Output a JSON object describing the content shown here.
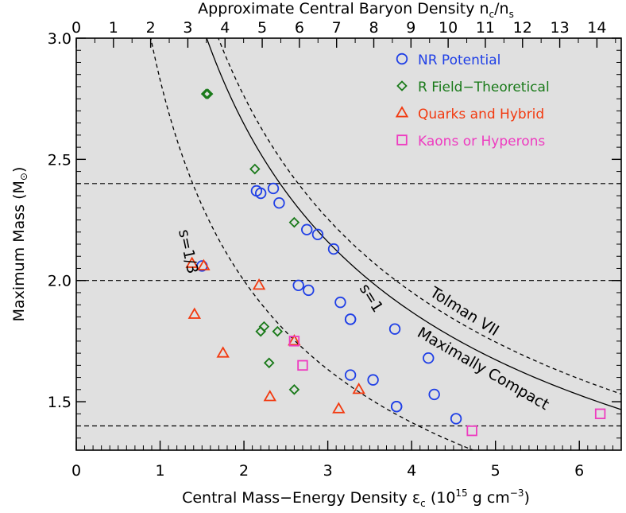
{
  "chart_data": {
    "type": "scatter",
    "xlabel": "Central Mass−Energy Density ε",
    "xlabel_sub": "c",
    "xlabel_units_pre": "(10",
    "xlabel_units_exp": "15",
    "xlabel_units_mid": "g cm",
    "xlabel_units_exp2": "−3",
    "xlabel_units_post": ")",
    "ylabel": "Maximum Mass (M",
    "ylabel_sub": "⊙",
    "ylabel_post": ")",
    "top_xlabel": "Approximate Central Baryon Density n",
    "top_xlabel_sub1": "c",
    "top_xlabel_mid": "/n",
    "top_xlabel_sub2": "s",
    "xlim": [
      0,
      6.5
    ],
    "ylim": [
      1.3,
      3.0
    ],
    "x_ticks": [
      "0",
      "1",
      "2",
      "3",
      "4",
      "5",
      "6"
    ],
    "y_ticks": [
      "1.5",
      "2.0",
      "2.5",
      "3.0"
    ],
    "top_ticks": [
      "0",
      "1",
      "2",
      "3",
      "4",
      "5",
      "6",
      "7",
      "8",
      "9",
      "10",
      "11",
      "12",
      "13",
      "14"
    ],
    "background": "#e0e0e0",
    "horizontal_lines": [
      1.4,
      2.0,
      2.4
    ],
    "curve_labels": {
      "causal_third": "s=1/3",
      "causal_one": "s=1",
      "tolman": "Tolman VII",
      "compact": "Maximally Compact"
    },
    "series": [
      {
        "name": "NR Potential",
        "marker": "circle",
        "color": "#1f3fe6",
        "points": [
          [
            1.5,
            2.06
          ],
          [
            2.15,
            2.37
          ],
          [
            2.2,
            2.36
          ],
          [
            2.35,
            2.38
          ],
          [
            2.42,
            2.32
          ],
          [
            2.75,
            2.21
          ],
          [
            2.88,
            2.19
          ],
          [
            3.07,
            2.13
          ],
          [
            2.65,
            1.98
          ],
          [
            2.77,
            1.96
          ],
          [
            3.15,
            1.91
          ],
          [
            3.27,
            1.84
          ],
          [
            3.27,
            1.84
          ],
          [
            3.8,
            1.8
          ],
          [
            4.2,
            1.68
          ],
          [
            3.27,
            1.61
          ],
          [
            3.54,
            1.59
          ],
          [
            3.82,
            1.48
          ],
          [
            3.82,
            1.48
          ],
          [
            4.27,
            1.53
          ],
          [
            4.53,
            1.43
          ]
        ]
      },
      {
        "name": "R Field−Theoretical",
        "marker": "diamond",
        "color": "#1a7a1a",
        "points": [
          [
            1.55,
            2.77
          ],
          [
            1.57,
            2.77
          ],
          [
            2.13,
            2.46
          ],
          [
            2.6,
            2.24
          ],
          [
            2.2,
            1.79
          ],
          [
            2.24,
            1.81
          ],
          [
            2.4,
            1.79
          ],
          [
            2.3,
            1.66
          ],
          [
            2.6,
            1.55
          ]
        ]
      },
      {
        "name": "Quarks and Hybrid",
        "marker": "triangle",
        "color": "#f23a10",
        "points": [
          [
            1.38,
            2.07
          ],
          [
            1.52,
            2.06
          ],
          [
            1.41,
            1.86
          ],
          [
            1.75,
            1.7
          ],
          [
            2.18,
            1.98
          ],
          [
            2.6,
            1.75
          ],
          [
            2.31,
            1.52
          ],
          [
            3.13,
            1.47
          ],
          [
            3.37,
            1.55
          ]
        ]
      },
      {
        "name": "Kaons or Hyperons",
        "marker": "square",
        "color": "#ee3cc0",
        "points": [
          [
            2.6,
            1.75
          ],
          [
            2.7,
            1.65
          ],
          [
            4.72,
            1.38
          ],
          [
            6.25,
            1.45
          ]
        ]
      }
    ]
  }
}
